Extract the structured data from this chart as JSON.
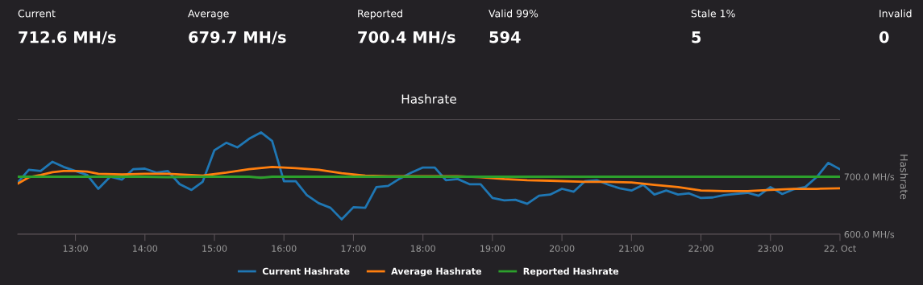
{
  "chart_data": [
    {
      "type": "other",
      "annotations": [
        "Current",
        "712.6 MH/s",
        "Average",
        "679.7 MH/s",
        "Reported",
        "700.4 MH/s",
        "Valid 99%",
        "594",
        "Stale 1%",
        "5",
        "Invalid",
        "0"
      ]
    },
    {
      "type": "line",
      "title": "Hashrate",
      "y2label": "Hashrate",
      "xlim": [
        12.17,
        24
      ],
      "xticks": [
        {
          "value": 13,
          "label": "13:00"
        },
        {
          "value": 14,
          "label": "14:00"
        },
        {
          "value": 15,
          "label": "15:00"
        },
        {
          "value": 16,
          "label": "16:00"
        },
        {
          "value": 17,
          "label": "17:00"
        },
        {
          "value": 18,
          "label": "18:00"
        },
        {
          "value": 19,
          "label": "19:00"
        },
        {
          "value": 20,
          "label": "20:00"
        },
        {
          "value": 21,
          "label": "21:00"
        },
        {
          "value": 22,
          "label": "22:00"
        },
        {
          "value": 23,
          "label": "23:00"
        },
        {
          "value": 24,
          "label": "22. Oct"
        }
      ],
      "y2lim": [
        600,
        800
      ],
      "y2ticks": [
        {
          "value": 600,
          "label": "600.0 MH/s"
        },
        {
          "value": 700,
          "label": "700.0 MH/s"
        },
        {
          "value": 800,
          "label": null
        }
      ],
      "grid": "y",
      "legend": "bottom",
      "marker": "none",
      "line_style": "solid",
      "series": [
        {
          "name": "Current Hashrate",
          "color": "#1f77b4",
          "axis": "y2",
          "x": [
            12.17,
            12.33,
            12.5,
            12.67,
            12.83,
            13,
            13.17,
            13.33,
            13.5,
            13.67,
            13.83,
            14,
            14.17,
            14.33,
            14.5,
            14.67,
            14.83,
            15,
            15.17,
            15.33,
            15.5,
            15.67,
            15.83,
            16,
            16.17,
            16.33,
            16.5,
            16.67,
            16.83,
            17,
            17.17,
            17.33,
            17.5,
            17.67,
            17.83,
            18,
            18.17,
            18.33,
            18.5,
            18.67,
            18.83,
            19,
            19.17,
            19.33,
            19.5,
            19.67,
            19.83,
            20,
            20.17,
            20.33,
            20.5,
            20.67,
            20.83,
            21,
            21.17,
            21.33,
            21.5,
            21.67,
            21.83,
            22,
            22.17,
            22.33,
            22.5,
            22.67,
            22.83,
            23,
            23.17,
            23.33,
            23.5,
            23.67,
            23.83,
            24
          ],
          "values": [
            690,
            712,
            710,
            726,
            717,
            710,
            703,
            679,
            700,
            695,
            713,
            714,
            707,
            710,
            687,
            677,
            691,
            746,
            759,
            751,
            766,
            777,
            762,
            692,
            692,
            668,
            654,
            646,
            626,
            647,
            646,
            682,
            684,
            697,
            707,
            716,
            716,
            694,
            696,
            687,
            687,
            663,
            659,
            660,
            653,
            667,
            669,
            679,
            674,
            692,
            694,
            686,
            680,
            676,
            686,
            669,
            676,
            669,
            671,
            663,
            664,
            668,
            670,
            672,
            667,
            682,
            670,
            678,
            682,
            700,
            724,
            713
          ]
        },
        {
          "name": "Average Hashrate",
          "color": "#ff7f0e",
          "axis": "y2",
          "x": [
            12.17,
            12.33,
            12.5,
            12.67,
            12.83,
            13,
            13.17,
            13.33,
            13.67,
            14,
            14.33,
            14.67,
            14.83,
            15.17,
            15.5,
            15.83,
            16.17,
            16.5,
            16.83,
            17.17,
            17.5,
            17.83,
            18.17,
            18.5,
            18.83,
            19.17,
            19.5,
            19.83,
            20.33,
            20.67,
            21,
            21.33,
            21.67,
            22,
            22.33,
            22.67,
            23,
            23.33,
            23.67,
            24
          ],
          "values": [
            688,
            699,
            703,
            708,
            710,
            710,
            709,
            705,
            704,
            705,
            705,
            703,
            702,
            707,
            713,
            717,
            715,
            712,
            706,
            702,
            701,
            701,
            701,
            701,
            699,
            696,
            694,
            693,
            691,
            691,
            690,
            686,
            682,
            676,
            675,
            675,
            677,
            679,
            679,
            680
          ]
        },
        {
          "name": "Reported Hashrate",
          "color": "#2ca02c",
          "axis": "y2",
          "x": [
            12.17,
            13,
            14,
            14.33,
            14.67,
            15,
            15.5,
            15.67,
            15.83,
            16.17,
            17,
            18,
            19,
            20,
            21,
            22,
            23,
            24
          ],
          "values": [
            700,
            700,
            700,
            699,
            700,
            700,
            700,
            698,
            700,
            700,
            700,
            700,
            700,
            700,
            700,
            700,
            700,
            700
          ]
        }
      ]
    }
  ]
}
